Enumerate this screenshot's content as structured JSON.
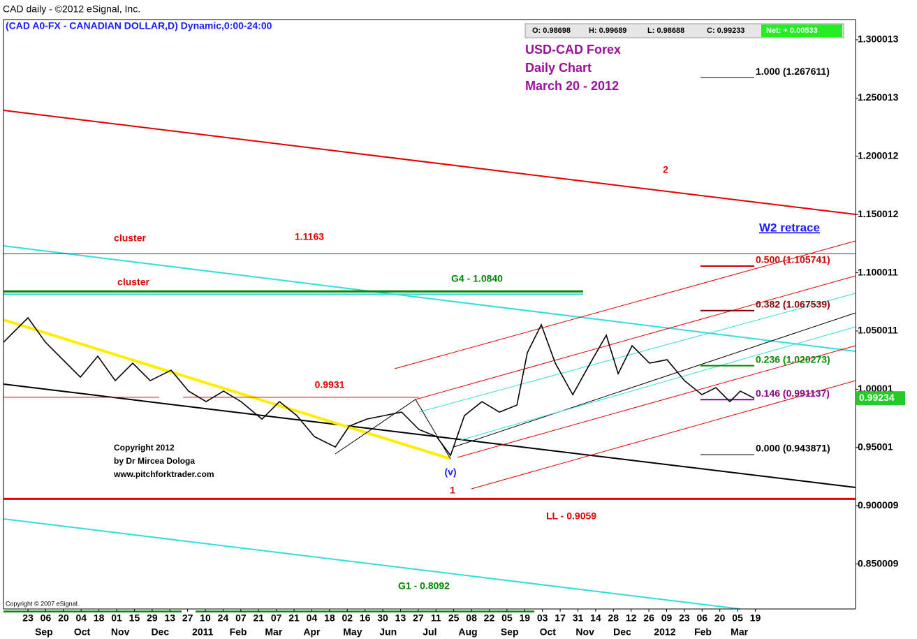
{
  "chart_data": {
    "type": "line",
    "header": "CAD daily - ©2012 eSignal, Inc.",
    "symbol_line": "(CAD A0-FX - CANADIAN DOLLAR,D) Dynamic,0:00-24:00",
    "ohlc": [
      "O: 0.98698",
      "H: 0.99689",
      "L: 0.98688",
      "C: 0.99233"
    ],
    "net": "Net: + 0.00533",
    "title": [
      "USD-CAD Forex",
      "Daily Chart",
      "March 20 - 2012"
    ],
    "fib_title": "W2 retrace",
    "copyright": [
      "Copyright 2012",
      "by Dr Mircea Dologa",
      "www.pitchforktrader.com"
    ],
    "source_note": "Copyright © 2007 eSignal.",
    "last_price": 0.99234,
    "ylim": [
      0.8114,
      1.3174
    ],
    "yticks": [
      1.300013,
      1.250013,
      1.200012,
      1.150012,
      1.100011,
      1.050011,
      1.00001,
      0.95001,
      0.900009,
      0.850009
    ],
    "xlim": [
      -2.76,
      93.3
    ],
    "xticks": [
      {
        "value": 0,
        "label": "23"
      },
      {
        "value": 2,
        "label": "06"
      },
      {
        "value": 4,
        "label": "20"
      },
      {
        "value": 6,
        "label": "04"
      },
      {
        "value": 8,
        "label": "18"
      },
      {
        "value": 10,
        "label": "01"
      },
      {
        "value": 12,
        "label": "15"
      },
      {
        "value": 14,
        "label": "29"
      },
      {
        "value": 16,
        "label": "13"
      },
      {
        "value": 18,
        "label": "27"
      },
      {
        "value": 20,
        "label": "10"
      },
      {
        "value": 22,
        "label": "24"
      },
      {
        "value": 24,
        "label": "07"
      },
      {
        "value": 26,
        "label": "21"
      },
      {
        "value": 28,
        "label": "07"
      },
      {
        "value": 30,
        "label": "21"
      },
      {
        "value": 32,
        "label": "04"
      },
      {
        "value": 34,
        "label": "18"
      },
      {
        "value": 36,
        "label": "02"
      },
      {
        "value": 38,
        "label": "16"
      },
      {
        "value": 40,
        "label": "30"
      },
      {
        "value": 42,
        "label": "13"
      },
      {
        "value": 44,
        "label": "27"
      },
      {
        "value": 46,
        "label": "11"
      },
      {
        "value": 48,
        "label": "25"
      },
      {
        "value": 50,
        "label": "08"
      },
      {
        "value": 52,
        "label": "22"
      },
      {
        "value": 54,
        "label": "05"
      },
      {
        "value": 56,
        "label": "19"
      },
      {
        "value": 58,
        "label": "03"
      },
      {
        "value": 60,
        "label": "17"
      },
      {
        "value": 62,
        "label": "31"
      },
      {
        "value": 64,
        "label": "14"
      },
      {
        "value": 66,
        "label": "28"
      },
      {
        "value": 68,
        "label": "12"
      },
      {
        "value": 70,
        "label": "26"
      },
      {
        "value": 72,
        "label": "09"
      },
      {
        "value": 74,
        "label": "23"
      },
      {
        "value": 76,
        "label": "06"
      },
      {
        "value": 78,
        "label": "20"
      },
      {
        "value": 80,
        "label": "05"
      },
      {
        "value": 82,
        "label": "19"
      }
    ],
    "month_ticks": [
      {
        "value": 1.8,
        "label": "Sep"
      },
      {
        "value": 6.1,
        "label": "Oct"
      },
      {
        "value": 10.4,
        "label": "Nov"
      },
      {
        "value": 14.9,
        "label": "Dec"
      },
      {
        "value": 19.7,
        "label": "2011"
      },
      {
        "value": 23.7,
        "label": "Feb"
      },
      {
        "value": 27.7,
        "label": "Mar"
      },
      {
        "value": 32.0,
        "label": "Apr"
      },
      {
        "value": 36.6,
        "label": "May"
      },
      {
        "value": 40.6,
        "label": "Jun"
      },
      {
        "value": 45.3,
        "label": "Jul"
      },
      {
        "value": 49.6,
        "label": "Aug"
      },
      {
        "value": 54.3,
        "label": "Sep"
      },
      {
        "value": 58.6,
        "label": "Oct"
      },
      {
        "value": 62.8,
        "label": "Nov"
      },
      {
        "value": 67.0,
        "label": "Dec"
      },
      {
        "value": 71.8,
        "label": "2012"
      },
      {
        "value": 76.1,
        "label": "Feb"
      },
      {
        "value": 80.2,
        "label": "Mar"
      }
    ],
    "series": [
      {
        "name": "CAD",
        "color": "#000000",
        "x": [
          -2.76,
          0,
          1.97,
          3.94,
          5.91,
          7.87,
          9.84,
          11.81,
          13.78,
          16.14,
          18.11,
          20.08,
          22.05,
          24.02,
          26.38,
          28.35,
          30.31,
          32.28,
          34.65,
          36.22,
          38.19,
          40.16,
          42.13,
          44.09,
          46.06,
          47.64,
          49.21,
          51.18,
          53.15,
          55.12,
          56.3,
          57.87,
          59.45,
          61.42,
          63.39,
          65.2,
          66.54,
          68.11,
          70.08,
          72.05,
          74.02,
          75.98,
          77.56,
          79.13,
          80.31,
          81.89
        ],
        "values": [
          1.0404,
          1.0614,
          1.0404,
          1.0254,
          1.0104,
          1.0284,
          1.0074,
          1.0224,
          1.0074,
          1.0164,
          0.9984,
          0.9894,
          0.9984,
          0.9894,
          0.9744,
          0.9894,
          0.9774,
          0.9594,
          0.9504,
          0.9684,
          0.9744,
          0.9774,
          0.9804,
          0.9654,
          0.9594,
          0.9432,
          0.9774,
          0.9894,
          0.9804,
          0.9864,
          1.0314,
          1.0554,
          1.0224,
          0.9954,
          1.0224,
          1.0464,
          1.0134,
          1.0374,
          1.0224,
          1.0254,
          1.0074,
          0.9954,
          1.0014,
          0.9894,
          0.9984,
          0.9923
        ]
      }
    ],
    "levels": [
      {
        "label": "1.1163",
        "value": 1.1163,
        "color": "#e00000"
      },
      {
        "label": "G4 - 1.0840",
        "value": 1.084,
        "color": "#008800"
      },
      {
        "label": "0.9931",
        "value": 0.9931,
        "color": "#e00000"
      },
      {
        "label": "LL - 0.9059",
        "value": 0.9059,
        "color": "#e00000"
      },
      {
        "label": "G1 - 0.8092",
        "value": 0.8092,
        "color": "#008800"
      }
    ],
    "fib_levels": [
      {
        "label": "1.000 (1.267611)",
        "value": 1.267611,
        "color": "#000000"
      },
      {
        "label": "0.500 (1.105741)",
        "value": 1.105741,
        "color": "#cc0000"
      },
      {
        "label": "0.382 (1.067539)",
        "value": 1.067539,
        "color": "#880000"
      },
      {
        "label": "0.236 (1.020273)",
        "value": 1.020273,
        "color": "#008800"
      },
      {
        "label": "0.146 (0.991137)",
        "value": 0.991137,
        "color": "#880088"
      },
      {
        "label": "0.000 (0.943871)",
        "value": 0.943871,
        "color": "#000000"
      }
    ],
    "annotations": [
      "cluster",
      "cluster",
      "2",
      "1",
      "(v)"
    ]
  }
}
